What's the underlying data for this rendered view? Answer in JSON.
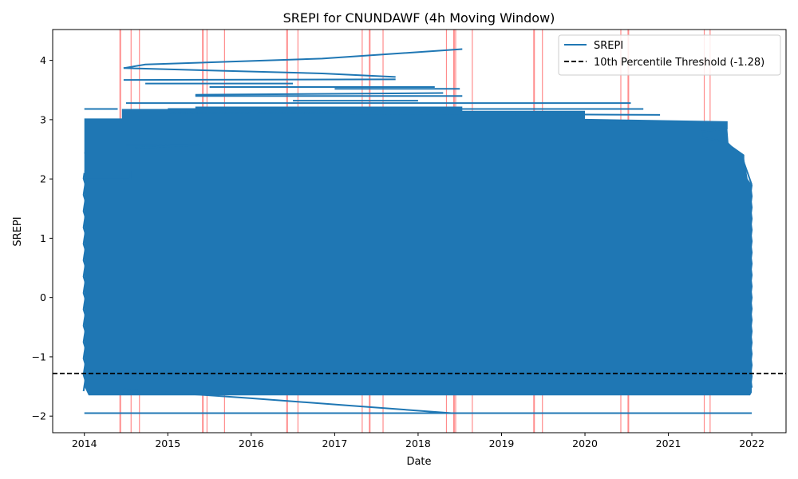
{
  "chart_data": {
    "type": "line",
    "title": "SREPI for CNUNDAWF (4h Moving Window)",
    "xlabel": "Date",
    "ylabel": "SREPI",
    "xlim": [
      2013.62,
      2022.41
    ],
    "ylim": [
      -2.28,
      4.52
    ],
    "x_ticks": [
      2014,
      2015,
      2016,
      2017,
      2018,
      2019,
      2020,
      2021,
      2022
    ],
    "y_ticks": [
      -2,
      -1,
      0,
      1,
      2,
      3,
      4
    ],
    "y_tick_labels": [
      "−2",
      "−1",
      "0",
      "1",
      "2",
      "3",
      "4"
    ],
    "grid": false,
    "legend_position": "top-right",
    "series": [
      {
        "name": "SREPI",
        "color": "#1f77b4",
        "x_range": [
          2014.0,
          2022.0
        ],
        "y_floor": -1.65,
        "notable_points": [
          {
            "x": 2014.47,
            "y": 3.87
          },
          {
            "x": 2014.73,
            "y": 3.93
          },
          {
            "x": 2016.85,
            "y": 4.03
          },
          {
            "x": 2018.53,
            "y": 4.19
          },
          {
            "x": 2016.85,
            "y": 3.78
          },
          {
            "x": 2017.73,
            "y": 3.72
          },
          {
            "x": 2014.47,
            "y": 3.67
          },
          {
            "x": 2017.73,
            "y": 3.68
          },
          {
            "x": 2014.73,
            "y": 3.61
          },
          {
            "x": 2016.5,
            "y": 3.61
          },
          {
            "x": 2015.33,
            "y": 3.42
          },
          {
            "x": 2018.53,
            "y": 3.4
          },
          {
            "x": 2014.0,
            "y": 3.18
          },
          {
            "x": 2020.55,
            "y": 3.28
          },
          {
            "x": 2014.0,
            "y": 3.02
          },
          {
            "x": 2021.7,
            "y": 2.96
          },
          {
            "x": 2014.0,
            "y": 2.44
          },
          {
            "x": 2014.0,
            "y": 2.13
          },
          {
            "x": 2022.0,
            "y": 1.9
          },
          {
            "x": 2014.0,
            "y": -1.95
          },
          {
            "x": 2018.4,
            "y": -1.95
          },
          {
            "x": 2022.0,
            "y": -1.95
          }
        ]
      },
      {
        "name": "10th Percentile Threshold (-1.28)",
        "color": "#000000",
        "style": "dashed",
        "value": -1.28
      }
    ],
    "highlight_dates": [
      2014.43,
      2014.56,
      2014.66,
      2015.42,
      2015.47,
      2015.68,
      2016.43,
      2016.56,
      2017.33,
      2017.42,
      2017.58,
      2018.34,
      2018.43,
      2018.45,
      2018.65,
      2019.39,
      2019.49,
      2020.43,
      2020.52,
      2021.43,
      2021.5
    ],
    "highlight_color": "#ff0000"
  }
}
